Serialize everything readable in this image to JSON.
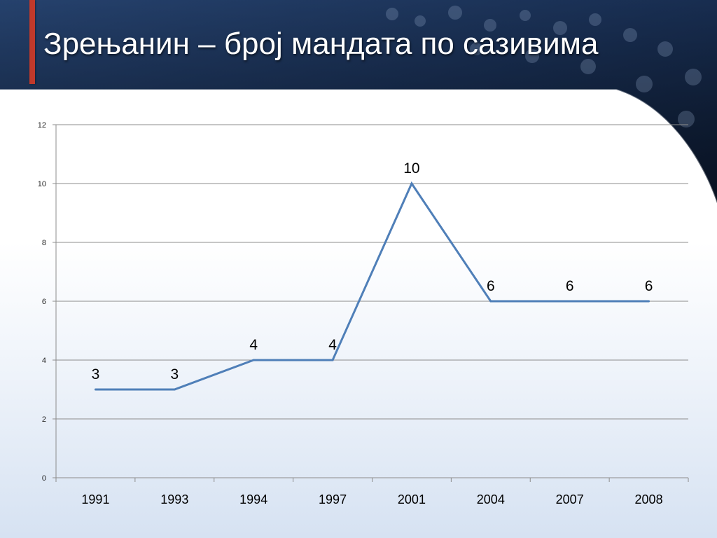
{
  "slide": {
    "title": "Зрењанин – број мандата по сазивима",
    "accent_color": "#c0392b",
    "header_color": "#1e3a66"
  },
  "chart_data": {
    "type": "line",
    "title": "",
    "xlabel": "",
    "ylabel": "",
    "categories": [
      "1991",
      "1993",
      "1994",
      "1997",
      "2001",
      "2004",
      "2007",
      "2008"
    ],
    "series": [
      {
        "values": [
          3,
          3,
          4,
          4,
          10,
          6,
          6,
          6
        ],
        "color": "#4f7fb8"
      }
    ],
    "ylim": [
      0,
      12
    ],
    "yticks": [
      "0",
      "2",
      "4",
      "6",
      "8",
      "10",
      "12"
    ],
    "data_labels": [
      "3",
      "3",
      "4",
      "4",
      "10",
      "6",
      "6",
      "6"
    ],
    "grid": true,
    "legend": "none"
  }
}
